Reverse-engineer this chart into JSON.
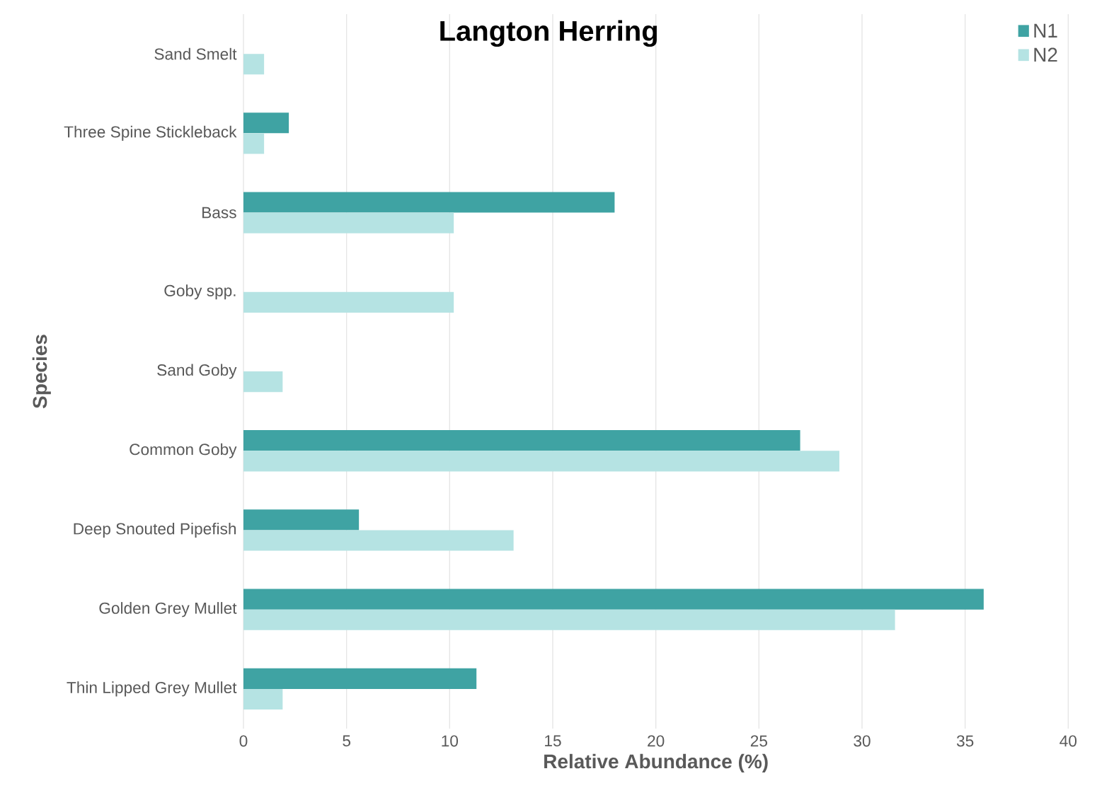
{
  "chart_data": {
    "type": "bar",
    "orientation": "horizontal",
    "title": "Langton Herring",
    "xlabel": "Relative Abundance (%)",
    "ylabel": "Species",
    "categories": [
      "Sand Smelt",
      "Three Spine Stickleback",
      "Bass",
      "Goby spp.",
      "Sand Goby",
      "Common Goby",
      "Deep Snouted Pipefish",
      "Golden Grey Mullet",
      "Thin Lipped Grey Mullet"
    ],
    "series": [
      {
        "name": "N1",
        "color": "#3fa3a3",
        "values": [
          null,
          2.2,
          18,
          null,
          null,
          27,
          5.6,
          35.9,
          11.3
        ]
      },
      {
        "name": "N2",
        "color": "#b5e3e3",
        "values": [
          1,
          1,
          10.2,
          10.2,
          1.9,
          28.9,
          13.1,
          31.6,
          1.9
        ]
      }
    ],
    "xlim": [
      0,
      40
    ],
    "xticks": [
      0,
      5,
      10,
      15,
      20,
      25,
      30,
      35,
      40
    ],
    "grid": "x",
    "legend": "top right"
  }
}
